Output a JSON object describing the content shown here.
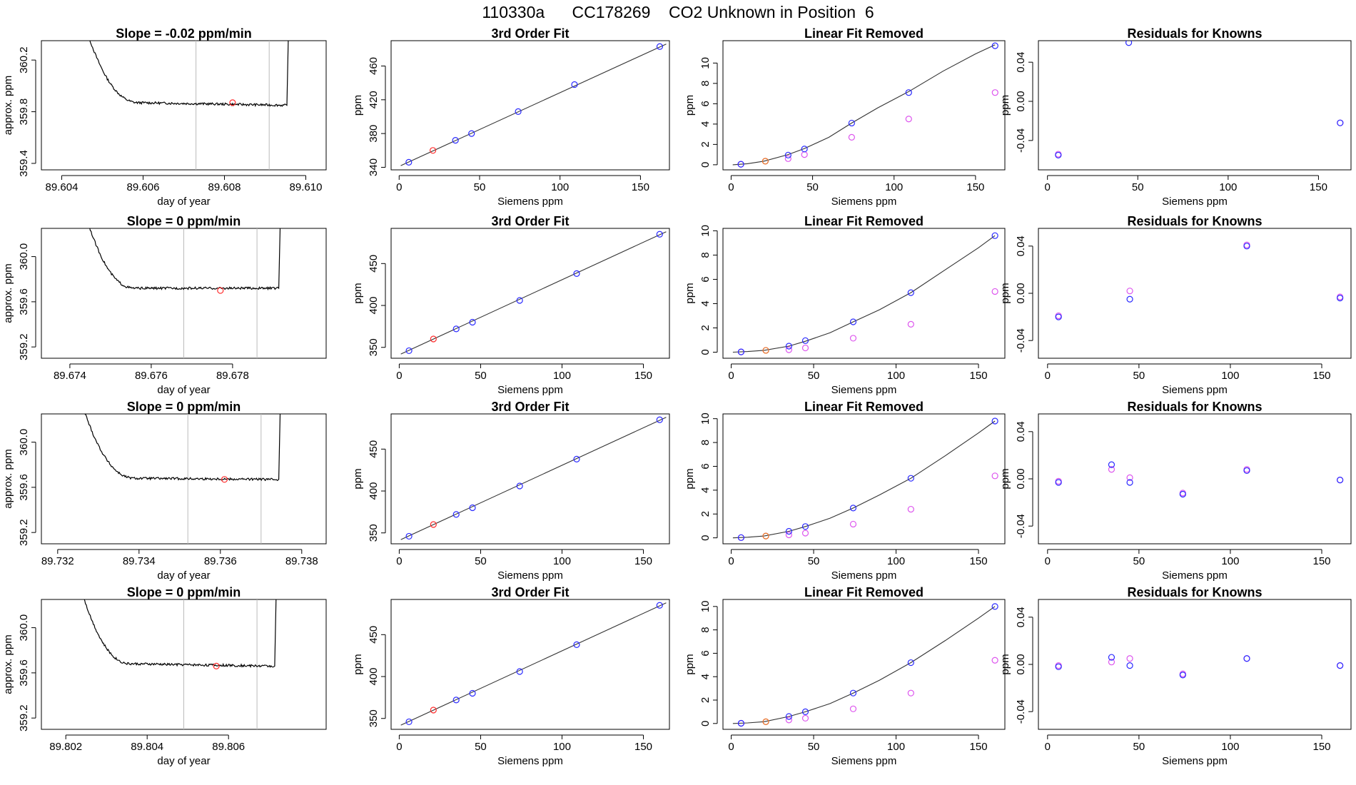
{
  "title": "110330a      CC178269    CO2 Unknown in Position  6",
  "colors": {
    "trace": "#000000",
    "vline": "#bbbbbb",
    "red": "#ff2a2a",
    "blue": "#2a2aff",
    "orange": "#e87a1e",
    "violet": "#dd55ee",
    "purple": "#8b2be2"
  },
  "chart_data": [
    {
      "row": 0,
      "col": 0,
      "type": "line",
      "title": "Slope =  -0.02  ppm/min",
      "xlabel": "day of year",
      "ylabel": "approx. ppm",
      "xlim": [
        89.6035,
        89.6105
      ],
      "ylim": [
        359.35,
        360.35
      ],
      "xticks": [
        "89.604",
        "89.606",
        "89.608",
        "89.610"
      ],
      "yticks": [
        "359.4",
        "359.8",
        "360.2"
      ],
      "vlines": [
        89.6073,
        89.6091
      ],
      "trace": {
        "x_start": 89.6043,
        "x_end": 89.6095,
        "drop_end": 89.6059,
        "level": 359.87,
        "end_level": 359.85
      },
      "marker": {
        "x": 89.6082,
        "y": 359.87
      }
    },
    {
      "row": 0,
      "col": 1,
      "type": "scatter",
      "title": "3rd Order Fit",
      "xlabel": "Siemens ppm",
      "ylabel": "ppm",
      "xlim": [
        -5,
        168
      ],
      "ylim": [
        337,
        490
      ],
      "xticks": [
        "0",
        "50",
        "100",
        "150"
      ],
      "yticks": [
        "340",
        "380",
        "420",
        "460"
      ],
      "line": [
        [
          1,
          342
        ],
        [
          166,
          486
        ]
      ],
      "points_blue": [
        [
          6,
          346
        ],
        [
          35,
          372
        ],
        [
          45,
          380
        ],
        [
          74,
          406
        ],
        [
          109,
          438
        ],
        [
          162,
          483
        ]
      ],
      "points_red": [
        [
          21,
          360
        ]
      ]
    },
    {
      "row": 0,
      "col": 2,
      "type": "scatter",
      "title": "Linear Fit Removed",
      "xlabel": "Siemens ppm",
      "ylabel": "ppm",
      "xlim": [
        -5,
        168
      ],
      "ylim": [
        -0.5,
        12.2
      ],
      "xticks": [
        "0",
        "50",
        "100",
        "150"
      ],
      "yticks": [
        "0",
        "2",
        "4",
        "6",
        "8",
        "10"
      ],
      "curve": [
        [
          1,
          0
        ],
        [
          10,
          0.1
        ],
        [
          20,
          0.35
        ],
        [
          35,
          1.0
        ],
        [
          45,
          1.6
        ],
        [
          60,
          2.7
        ],
        [
          74,
          4.1
        ],
        [
          90,
          5.6
        ],
        [
          109,
          7.2
        ],
        [
          130,
          9.2
        ],
        [
          150,
          10.9
        ],
        [
          162,
          11.8
        ]
      ],
      "points_blue": [
        [
          6,
          0.05
        ],
        [
          35,
          0.95
        ],
        [
          45,
          1.55
        ],
        [
          74,
          4.1
        ],
        [
          109,
          7.1
        ],
        [
          162,
          11.7
        ]
      ],
      "points_orange": [
        [
          21,
          0.35
        ]
      ],
      "points_violet": [
        [
          6,
          0.05
        ],
        [
          21,
          0.35
        ],
        [
          35,
          0.6
        ],
        [
          45,
          1.0
        ],
        [
          74,
          2.7
        ],
        [
          109,
          4.5
        ],
        [
          162,
          7.1
        ]
      ]
    },
    {
      "row": 0,
      "col": 3,
      "type": "scatter",
      "title": "Residuals for Knowns",
      "xlabel": "Siemens ppm",
      "ylabel": "ppm",
      "xlim": [
        -5,
        168
      ],
      "ylim": [
        -0.07,
        0.062
      ],
      "xticks": [
        "0",
        "50",
        "100",
        "150"
      ],
      "yticks": [
        "-0.04",
        "0.00",
        "0.04"
      ],
      "points_blue": [
        [
          6,
          -0.055
        ],
        [
          45,
          0.06
        ],
        [
          162,
          -0.022
        ]
      ],
      "points_violet": [
        [
          6,
          -0.054
        ],
        [
          162,
          -0.022
        ]
      ]
    },
    {
      "row": 1,
      "col": 0,
      "type": "line",
      "title": "Slope =  0  ppm/min",
      "xlabel": "day of year",
      "ylabel": "approx. ppm",
      "xlim": [
        89.6733,
        89.6803
      ],
      "ylim": [
        359.1,
        360.25
      ],
      "xticks": [
        "89.674",
        "89.676",
        "89.678"
      ],
      "yticks": [
        "359.2",
        "359.6",
        "360.0"
      ],
      "vlines": [
        89.6768,
        89.6786
      ],
      "trace": {
        "x_start": 89.6741,
        "x_end": 89.6791,
        "drop_end": 89.6756,
        "level": 359.72,
        "end_level": 359.72
      },
      "marker": {
        "x": 89.6777,
        "y": 359.7
      }
    },
    {
      "row": 1,
      "col": 1,
      "type": "scatter",
      "title": "3rd Order Fit",
      "xlabel": "Siemens ppm",
      "ylabel": "ppm",
      "xlim": [
        -5,
        166
      ],
      "ylim": [
        337,
        492
      ],
      "xticks": [
        "0",
        "50",
        "100",
        "150"
      ],
      "yticks": [
        "350",
        "400",
        "450"
      ],
      "line": [
        [
          1,
          342
        ],
        [
          164,
          488
        ]
      ],
      "points_blue": [
        [
          6,
          346
        ],
        [
          35,
          372
        ],
        [
          45,
          380
        ],
        [
          74,
          406
        ],
        [
          109,
          438
        ],
        [
          160,
          485
        ]
      ],
      "points_red": [
        [
          21,
          360
        ]
      ]
    },
    {
      "row": 1,
      "col": 2,
      "type": "scatter",
      "title": "Linear Fit Removed",
      "xlabel": "Siemens ppm",
      "ylabel": "ppm",
      "xlim": [
        -5,
        166
      ],
      "ylim": [
        -0.5,
        10.2
      ],
      "xticks": [
        "0",
        "50",
        "100",
        "150"
      ],
      "yticks": [
        "0",
        "2",
        "4",
        "6",
        "8",
        "10"
      ],
      "curve": [
        [
          1,
          0
        ],
        [
          10,
          0.05
        ],
        [
          20,
          0.15
        ],
        [
          35,
          0.5
        ],
        [
          45,
          0.9
        ],
        [
          60,
          1.6
        ],
        [
          74,
          2.5
        ],
        [
          90,
          3.5
        ],
        [
          109,
          4.9
        ],
        [
          130,
          6.8
        ],
        [
          150,
          8.6
        ],
        [
          160,
          9.6
        ]
      ],
      "points_blue": [
        [
          6,
          0.02
        ],
        [
          35,
          0.5
        ],
        [
          45,
          0.95
        ],
        [
          74,
          2.5
        ],
        [
          109,
          4.9
        ],
        [
          160,
          9.6
        ]
      ],
      "points_orange": [
        [
          21,
          0.15
        ]
      ],
      "points_violet": [
        [
          6,
          0.02
        ],
        [
          21,
          0.15
        ],
        [
          35,
          0.2
        ],
        [
          45,
          0.35
        ],
        [
          74,
          1.15
        ],
        [
          109,
          2.3
        ],
        [
          160,
          5.0
        ]
      ]
    },
    {
      "row": 1,
      "col": 3,
      "type": "scatter",
      "title": "Residuals for Knowns",
      "xlabel": "Siemens ppm",
      "ylabel": "ppm",
      "xlim": [
        -5,
        166
      ],
      "ylim": [
        -0.055,
        0.055
      ],
      "xticks": [
        "0",
        "50",
        "100",
        "150"
      ],
      "yticks": [
        "-0.04",
        "0.00",
        "0.04"
      ],
      "points_blue": [
        [
          6,
          -0.02
        ],
        [
          45,
          -0.005
        ],
        [
          109,
          0.04
        ],
        [
          160,
          -0.004
        ]
      ],
      "points_violet": [
        [
          6,
          -0.019
        ],
        [
          45,
          0.002
        ],
        [
          109,
          0.041
        ],
        [
          160,
          -0.003
        ]
      ]
    },
    {
      "row": 2,
      "col": 0,
      "type": "line",
      "title": "Slope =  0  ppm/min",
      "xlabel": "day of year",
      "ylabel": "approx. ppm",
      "xlim": [
        89.7316,
        89.7386
      ],
      "ylim": [
        359.1,
        360.25
      ],
      "xticks": [
        "89.732",
        "89.734",
        "89.736",
        "89.738"
      ],
      "yticks": [
        "359.2",
        "359.6",
        "360.0"
      ],
      "vlines": [
        89.7352,
        89.737
      ],
      "trace": {
        "x_start": 89.7323,
        "x_end": 89.7374,
        "drop_end": 89.7339,
        "level": 359.68,
        "end_level": 359.67
      },
      "marker": {
        "x": 89.7361,
        "y": 359.67
      }
    },
    {
      "row": 2,
      "col": 1,
      "type": "scatter",
      "title": "3rd Order Fit",
      "xlabel": "Siemens ppm",
      "ylabel": "ppm",
      "xlim": [
        -5,
        166
      ],
      "ylim": [
        337,
        492
      ],
      "xticks": [
        "0",
        "50",
        "100",
        "150"
      ],
      "yticks": [
        "350",
        "400",
        "450"
      ],
      "line": [
        [
          1,
          342
        ],
        [
          164,
          488
        ]
      ],
      "points_blue": [
        [
          6,
          346
        ],
        [
          35,
          372
        ],
        [
          45,
          380
        ],
        [
          74,
          406
        ],
        [
          109,
          438
        ],
        [
          160,
          485
        ]
      ],
      "points_red": [
        [
          21,
          360
        ]
      ]
    },
    {
      "row": 2,
      "col": 2,
      "type": "scatter",
      "title": "Linear Fit Removed",
      "xlabel": "Siemens ppm",
      "ylabel": "ppm",
      "xlim": [
        -5,
        166
      ],
      "ylim": [
        -0.5,
        10.4
      ],
      "xticks": [
        "0",
        "50",
        "100",
        "150"
      ],
      "yticks": [
        "0",
        "2",
        "4",
        "6",
        "8",
        "10"
      ],
      "curve": [
        [
          1,
          0
        ],
        [
          10,
          0.05
        ],
        [
          20,
          0.15
        ],
        [
          35,
          0.55
        ],
        [
          45,
          0.95
        ],
        [
          60,
          1.65
        ],
        [
          74,
          2.5
        ],
        [
          90,
          3.6
        ],
        [
          109,
          5.0
        ],
        [
          130,
          6.9
        ],
        [
          150,
          8.8
        ],
        [
          160,
          9.8
        ]
      ],
      "points_blue": [
        [
          6,
          0.02
        ],
        [
          35,
          0.55
        ],
        [
          45,
          0.95
        ],
        [
          74,
          2.5
        ],
        [
          109,
          5.0
        ],
        [
          160,
          9.8
        ]
      ],
      "points_orange": [
        [
          21,
          0.15
        ]
      ],
      "points_violet": [
        [
          6,
          0.02
        ],
        [
          21,
          0.15
        ],
        [
          35,
          0.25
        ],
        [
          45,
          0.4
        ],
        [
          74,
          1.15
        ],
        [
          109,
          2.4
        ],
        [
          160,
          5.2
        ]
      ]
    },
    {
      "row": 2,
      "col": 3,
      "type": "scatter",
      "title": "Residuals for Knowns",
      "xlabel": "Siemens ppm",
      "ylabel": "ppm",
      "xlim": [
        -5,
        166
      ],
      "ylim": [
        -0.055,
        0.055
      ],
      "xticks": [
        "0",
        "50",
        "100",
        "150"
      ],
      "yticks": [
        "-0.04",
        "0.00",
        "0.04"
      ],
      "points_blue": [
        [
          6,
          -0.003
        ],
        [
          35,
          0.012
        ],
        [
          45,
          -0.003
        ],
        [
          74,
          -0.013
        ],
        [
          109,
          0.007
        ],
        [
          160,
          -0.001
        ]
      ],
      "points_violet": [
        [
          6,
          -0.002
        ],
        [
          35,
          0.008
        ],
        [
          45,
          0.001
        ],
        [
          74,
          -0.012
        ],
        [
          109,
          0.008
        ],
        [
          160,
          -0.001
        ]
      ]
    },
    {
      "row": 3,
      "col": 0,
      "type": "line",
      "title": "Slope =  0  ppm/min",
      "xlabel": "day of year",
      "ylabel": "approx. ppm",
      "xlim": [
        89.8014,
        89.8084
      ],
      "ylim": [
        359.1,
        360.25
      ],
      "xticks": [
        "89.802",
        "89.804",
        "89.806"
      ],
      "yticks": [
        "359.2",
        "359.6",
        "360.0"
      ],
      "vlines": [
        89.8049,
        89.8067
      ],
      "trace": {
        "x_start": 89.8021,
        "x_end": 89.8071,
        "drop_end": 89.8036,
        "level": 359.68,
        "end_level": 359.66
      },
      "marker": {
        "x": 89.8057,
        "y": 359.66
      }
    },
    {
      "row": 3,
      "col": 1,
      "type": "scatter",
      "title": "3rd Order Fit",
      "xlabel": "Siemens ppm",
      "ylabel": "ppm",
      "xlim": [
        -5,
        166
      ],
      "ylim": [
        337,
        492
      ],
      "xticks": [
        "0",
        "50",
        "100",
        "150"
      ],
      "yticks": [
        "350",
        "400",
        "450"
      ],
      "line": [
        [
          1,
          342
        ],
        [
          164,
          488
        ]
      ],
      "points_blue": [
        [
          6,
          346
        ],
        [
          35,
          372
        ],
        [
          45,
          380
        ],
        [
          74,
          406
        ],
        [
          109,
          438
        ],
        [
          160,
          485
        ]
      ],
      "points_red": [
        [
          21,
          360
        ]
      ]
    },
    {
      "row": 3,
      "col": 2,
      "type": "scatter",
      "title": "Linear Fit Removed",
      "xlabel": "Siemens ppm",
      "ylabel": "ppm",
      "xlim": [
        -5,
        166
      ],
      "ylim": [
        -0.5,
        10.6
      ],
      "xticks": [
        "0",
        "50",
        "100",
        "150"
      ],
      "yticks": [
        "0",
        "2",
        "4",
        "6",
        "8",
        "10"
      ],
      "curve": [
        [
          1,
          0
        ],
        [
          10,
          0.05
        ],
        [
          20,
          0.15
        ],
        [
          35,
          0.6
        ],
        [
          45,
          1.0
        ],
        [
          60,
          1.7
        ],
        [
          74,
          2.6
        ],
        [
          90,
          3.7
        ],
        [
          109,
          5.2
        ],
        [
          130,
          7.1
        ],
        [
          150,
          9.0
        ],
        [
          160,
          10.0
        ]
      ],
      "points_blue": [
        [
          6,
          0.02
        ],
        [
          35,
          0.6
        ],
        [
          45,
          1.0
        ],
        [
          74,
          2.6
        ],
        [
          109,
          5.2
        ],
        [
          160,
          10.0
        ]
      ],
      "points_orange": [
        [
          21,
          0.15
        ]
      ],
      "points_violet": [
        [
          6,
          0.02
        ],
        [
          21,
          0.15
        ],
        [
          35,
          0.3
        ],
        [
          45,
          0.45
        ],
        [
          74,
          1.25
        ],
        [
          109,
          2.6
        ],
        [
          160,
          5.4
        ]
      ]
    },
    {
      "row": 3,
      "col": 3,
      "type": "scatter",
      "title": "Residuals for Knowns",
      "xlabel": "Siemens ppm",
      "ylabel": "ppm",
      "xlim": [
        -5,
        166
      ],
      "ylim": [
        -0.055,
        0.055
      ],
      "xticks": [
        "0",
        "50",
        "100",
        "150"
      ],
      "yticks": [
        "-0.04",
        "0.00",
        "0.04"
      ],
      "points_blue": [
        [
          6,
          -0.002
        ],
        [
          35,
          0.006
        ],
        [
          45,
          -0.001
        ],
        [
          74,
          -0.009
        ],
        [
          109,
          0.005
        ],
        [
          160,
          -0.001
        ]
      ],
      "points_violet": [
        [
          6,
          -0.001
        ],
        [
          35,
          0.002
        ],
        [
          45,
          0.005
        ],
        [
          74,
          -0.008
        ],
        [
          109,
          0.005
        ],
        [
          160,
          -0.001
        ]
      ]
    }
  ]
}
